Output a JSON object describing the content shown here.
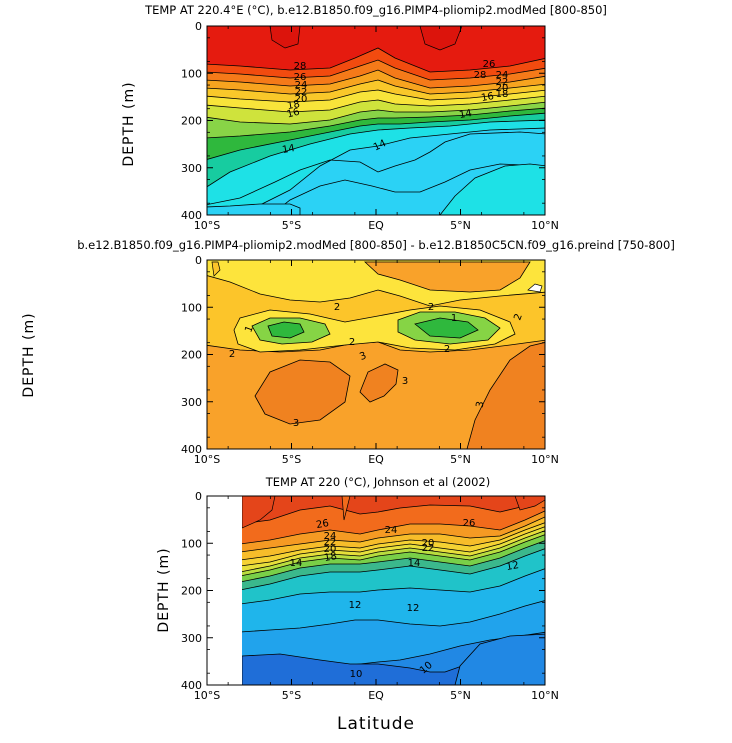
{
  "x_label": "Latitude",
  "chart_data": [
    {
      "type": "heatmap",
      "title": "TEMP AT 220.4°E (°C), b.e12.B1850.f09_g16.PIMP4-pliomip2.modMed [800-850]",
      "xlabel": "",
      "ylabel": "DEPTH (m)",
      "xlim": [
        -10,
        10
      ],
      "ylim": [
        400,
        0
      ],
      "x_ticks": [
        "10°S",
        "5°S",
        "EQ",
        "5°N",
        "10°N"
      ],
      "y_ticks": [
        "0",
        "100",
        "200",
        "300",
        "400"
      ],
      "levels": [
        14,
        16,
        18,
        20,
        22,
        24,
        26,
        28
      ],
      "contour_labels": [
        "28",
        "26",
        "24",
        "22",
        "20",
        "18",
        "16",
        "14",
        "14",
        "14",
        "26",
        "28",
        "24",
        "22",
        "20",
        "18",
        "16"
      ]
    },
    {
      "type": "heatmap",
      "title": "b.e12.B1850.f09_g16.PIMP4-pliomip2.modMed [800-850] - b.e12.B1850C5CN.f09_g16.preind [750-800]",
      "xlabel": "",
      "ylabel": "DEPTH (m)",
      "xlim": [
        -10,
        10
      ],
      "ylim": [
        400,
        0
      ],
      "x_ticks": [
        "10°S",
        "5°S",
        "EQ",
        "5°N",
        "10°N"
      ],
      "y_ticks": [
        "0",
        "100",
        "200",
        "300",
        "400"
      ],
      "levels": [
        1,
        2,
        3
      ],
      "contour_labels": [
        "2",
        "2",
        "2",
        "1",
        "1",
        "2",
        "2",
        "2",
        "3",
        "3",
        "3",
        "3"
      ]
    },
    {
      "type": "heatmap",
      "title": "TEMP AT 220 (°C), Johnson et al (2002)",
      "xlabel": "Latitude",
      "ylabel": "DEPTH (m)",
      "xlim": [
        -10,
        10
      ],
      "ylim": [
        400,
        0
      ],
      "x_ticks": [
        "10°S",
        "5°S",
        "EQ",
        "5°N",
        "10°N"
      ],
      "y_ticks": [
        "0",
        "100",
        "200",
        "300",
        "400"
      ],
      "levels": [
        10,
        12,
        14,
        16,
        18,
        20,
        22,
        24,
        26
      ],
      "contour_labels": [
        "26",
        "24",
        "22",
        "20",
        "18",
        "14",
        "24",
        "22",
        "20",
        "26",
        "14",
        "12",
        "12",
        "12",
        "10",
        "10"
      ]
    }
  ],
  "colors": {
    "p1": [
      "#e51b0f",
      "#f24b0f",
      "#f57a19",
      "#f7a41f",
      "#f9c82a",
      "#f8e43a",
      "#cfe33c",
      "#88d447",
      "#2fb83d",
      "#17cca0",
      "#1ee1e6",
      "#2bd2f5"
    ],
    "p2": [
      "#fde43c",
      "#fcc52a",
      "#f9a22a",
      "#f78a1e",
      "#f08220"
    ],
    "p3": [
      "#e4451a",
      "#f26b1c",
      "#f59a23",
      "#f7bd2a",
      "#f5d233",
      "#e6df3b",
      "#b8dd3f",
      "#79cf48",
      "#3bb88c",
      "#20c3c9",
      "#1fb5eb",
      "#21a3ec",
      "#2188e4",
      "#1f6ed8"
    ]
  }
}
